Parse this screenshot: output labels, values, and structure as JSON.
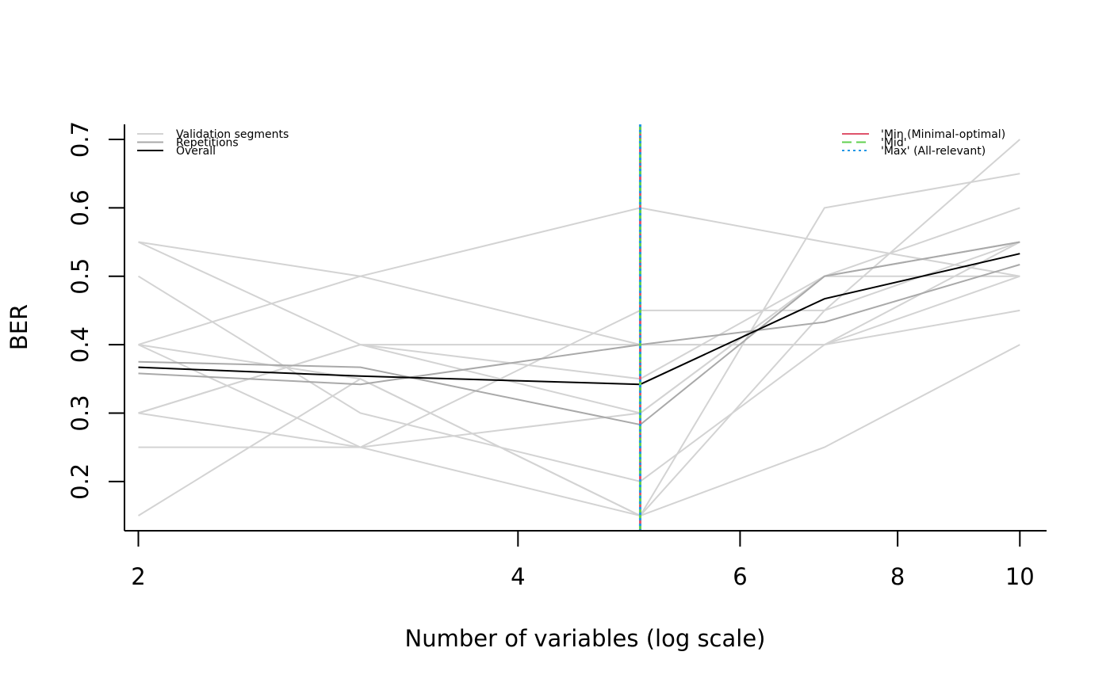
{
  "chart_data": {
    "type": "line",
    "title": "",
    "xlabel": "Number of variables (log scale)",
    "ylabel": "BER",
    "x_scale": "log",
    "xlim": [
      1.95,
      10.5
    ],
    "ylim": [
      0.128,
      0.722
    ],
    "x_ticks": [
      2,
      4,
      6,
      8,
      10
    ],
    "y_ticks": [
      0.2,
      0.3,
      0.4,
      0.5,
      0.6,
      0.7
    ],
    "x": [
      2,
      3,
      5,
      7,
      10
    ],
    "colors": {
      "validation": "#d3d3d3",
      "repetition": "#a9a9a9",
      "overall": "#000000",
      "min": "#df536b",
      "mid": "#61d04f",
      "max": "#2297e6"
    },
    "validation_segments": [
      [
        0.55,
        0.5,
        0.4,
        0.4,
        0.45
      ],
      [
        0.55,
        0.4,
        0.3,
        0.5,
        0.55
      ],
      [
        0.5,
        0.3,
        0.2,
        0.4,
        0.5
      ],
      [
        0.4,
        0.5,
        0.6,
        0.55,
        0.5
      ],
      [
        0.4,
        0.25,
        0.15,
        0.6,
        0.65
      ],
      [
        0.3,
        0.4,
        0.4,
        0.4,
        0.55
      ],
      [
        0.3,
        0.25,
        0.45,
        0.45,
        0.55
      ],
      [
        0.3,
        0.4,
        0.35,
        0.5,
        0.6
      ],
      [
        0.25,
        0.25,
        0.3,
        0.5,
        0.5
      ],
      [
        0.15,
        0.35,
        0.15,
        0.25,
        0.4
      ],
      [
        0.4,
        0.35,
        0.15,
        0.45,
        0.7
      ]
    ],
    "repetitions": [
      [
        0.375,
        0.367,
        0.283,
        0.5,
        0.55
      ],
      [
        0.358,
        0.342,
        0.4,
        0.433,
        0.517
      ]
    ],
    "overall": [
      0.367,
      0.354,
      0.342,
      0.467,
      0.533
    ],
    "selected_vlines": [
      {
        "name": "'Min (Minimal-optimal)",
        "x": 5,
        "style": "solid",
        "color": "#df536b"
      },
      {
        "name": "'Mid'",
        "x": 5,
        "style": "dashed",
        "color": "#61d04f"
      },
      {
        "name": "'Max' (All-relevant)",
        "x": 5,
        "style": "dotted",
        "color": "#2297e6"
      }
    ],
    "legend_left": {
      "placement": "top-left",
      "entries": [
        {
          "label": "Validation segments",
          "color": "#d3d3d3"
        },
        {
          "label": "Repetitions",
          "color": "#a9a9a9"
        },
        {
          "label": "Overall",
          "color": "#000000"
        }
      ]
    },
    "legend_right": {
      "placement": "top-right",
      "entries": [
        {
          "label": "'Min (Minimal-optimal)",
          "color": "#df536b",
          "style": "solid"
        },
        {
          "label": "'Mid'",
          "color": "#61d04f",
          "style": "dashed"
        },
        {
          "label": "'Max' (All-relevant)",
          "color": "#2297e6",
          "style": "dotted"
        }
      ]
    }
  }
}
